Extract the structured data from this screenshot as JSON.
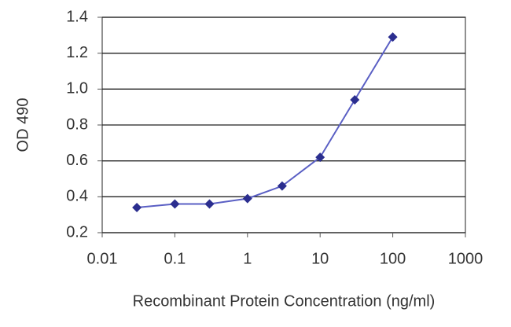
{
  "chart_data": {
    "type": "line",
    "x_label": "Recombinant Protein Concentration (ng/ml)",
    "y_label": "OD 490",
    "x": [
      0.03,
      0.1,
      0.3,
      1,
      3,
      10,
      30,
      100
    ],
    "values": [
      0.34,
      0.36,
      0.36,
      0.39,
      0.46,
      0.62,
      0.94,
      1.29
    ],
    "color": "#2b2e8f",
    "line_color": "#5a5fc4",
    "xlim": [
      0.01,
      1000
    ],
    "xticks": [
      0.01,
      0.1,
      1,
      10,
      100,
      1000
    ],
    "log_x": true,
    "ylim": [
      0.2,
      1.4
    ],
    "yticks": [
      1.4,
      1.2,
      {
        "value": 1.0,
        "label": "1.0"
      },
      0.8,
      0.6,
      0.4,
      0.2
    ],
    "grid": true
  }
}
